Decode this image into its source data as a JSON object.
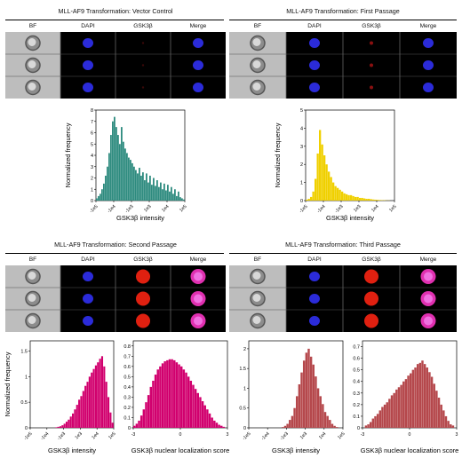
{
  "panels": [
    {
      "title": "MLL-AF9 Transformation: Vector Control",
      "cols": [
        "BF",
        "DAPI",
        "GSK3β",
        "Merge"
      ],
      "gsk": "none",
      "merge": "blue"
    },
    {
      "title": "MLL-AF9 Transformation: First Passage",
      "cols": [
        "BF",
        "DAPI",
        "GSK3β",
        "Merge"
      ],
      "gsk": "faint",
      "merge": "blue"
    },
    {
      "title": "MLL-AF9 Transformation: Second Passage",
      "cols": [
        "BF",
        "DAPI",
        "GSK3β",
        "Merge"
      ],
      "gsk": "red",
      "merge": "magenta"
    },
    {
      "title": "MLL-AF9 Transformation: Third Passage",
      "cols": [
        "BF",
        "DAPI",
        "GSK3β",
        "Merge"
      ],
      "gsk": "red",
      "merge": "magenta"
    }
  ],
  "colors": {
    "teal": "#2e8b7f",
    "yellow": "#f0d000",
    "magenta": "#d1006e",
    "brick": "#b5484c",
    "dapi": "#2b2bd9"
  },
  "chart_data": [
    {
      "type": "bar",
      "color": "teal",
      "ylabel": "Normalized frequency",
      "xlabel": "GSK3β intensity",
      "xticks": [
        "-1e5",
        "-1e4",
        "-1e3",
        "1e3",
        "1e4",
        "1e5"
      ],
      "yticks": [
        "0",
        "1",
        "2",
        "3",
        "4",
        "5",
        "6",
        "7",
        "8"
      ],
      "ylim": [
        0,
        8
      ],
      "values": [
        0.2,
        0.4,
        0.6,
        1.0,
        1.5,
        2.2,
        3.0,
        4.2,
        5.8,
        7.0,
        7.4,
        6.5,
        5.8,
        5.0,
        6.5,
        5.2,
        4.6,
        4.2,
        3.8,
        3.6,
        3.3,
        3.0,
        2.7,
        2.4,
        2.9,
        2.2,
        2.5,
        1.8,
        2.4,
        1.6,
        2.2,
        1.4,
        2.0,
        1.3,
        1.8,
        1.2,
        1.6,
        1.0,
        1.5,
        0.9,
        1.4,
        0.8,
        1.2,
        0.6,
        1.0,
        0.4,
        0.8,
        0.3,
        0.2,
        0.1
      ]
    },
    {
      "type": "bar",
      "color": "yellow",
      "ylabel": "Normalized frequency",
      "xlabel": "GSK3β intensity",
      "xticks": [
        "-1e5",
        "-1e4",
        "-1e3",
        "1e3",
        "1e4",
        "1e5"
      ],
      "yticks": [
        "0",
        "1",
        "2",
        "3",
        "4",
        "5"
      ],
      "ylim": [
        0,
        5
      ],
      "values": [
        0.05,
        0.1,
        0.2,
        0.5,
        1.2,
        2.6,
        3.9,
        3.1,
        2.5,
        2.0,
        1.6,
        1.3,
        1.0,
        0.8,
        0.7,
        0.6,
        0.5,
        0.4,
        0.35,
        0.3,
        0.3,
        0.25,
        0.2,
        0.2,
        0.15,
        0.15,
        0.12,
        0.1,
        0.1,
        0.08,
        0.06,
        0.05,
        0.04,
        0.03,
        0.02,
        0.02,
        0.01,
        0.01,
        0.0,
        0.0
      ]
    },
    {
      "type": "bar",
      "color": "magenta",
      "ylabel": "Normalized frequency",
      "xlabel": "GSK3β intensity",
      "xticks": [
        "-1e5",
        "-1e4",
        "-1e3",
        "1e3",
        "1e4",
        "1e5"
      ],
      "yticks": [
        "0",
        "0.5",
        "1",
        "1.5"
      ],
      "ylim": [
        0,
        1.7
      ],
      "values": [
        0.0,
        0.0,
        0.0,
        0.0,
        0.0,
        0.0,
        0.0,
        0.0,
        0.0,
        0.0,
        0.0,
        0.0,
        0.01,
        0.02,
        0.03,
        0.05,
        0.08,
        0.12,
        0.16,
        0.22,
        0.28,
        0.36,
        0.45,
        0.55,
        0.62,
        0.72,
        0.82,
        0.9,
        1.0,
        1.08,
        1.15,
        1.22,
        1.28,
        1.35,
        1.4,
        1.2,
        0.9,
        0.6,
        0.3,
        0.1
      ]
    },
    {
      "type": "bar",
      "color": "magenta",
      "ylabel": "",
      "xlabel": "GSK3β nuclear localization score",
      "xticks": [
        "-3",
        "0",
        "3"
      ],
      "yticks": [
        "0",
        "0.1",
        "0.2",
        "0.3",
        "0.4",
        "0.5",
        "0.6",
        "0.7",
        "0.8"
      ],
      "ylim": [
        0,
        0.85
      ],
      "values": [
        0.02,
        0.04,
        0.07,
        0.12,
        0.18,
        0.25,
        0.32,
        0.4,
        0.46,
        0.52,
        0.57,
        0.6,
        0.63,
        0.65,
        0.66,
        0.67,
        0.67,
        0.66,
        0.64,
        0.62,
        0.6,
        0.57,
        0.54,
        0.5,
        0.46,
        0.42,
        0.38,
        0.34,
        0.3,
        0.26,
        0.22,
        0.18,
        0.14,
        0.1,
        0.07,
        0.05,
        0.03,
        0.02,
        0.01,
        0.0
      ]
    },
    {
      "type": "bar",
      "color": "brick",
      "ylabel": "",
      "xlabel": "GSK3β intensity",
      "xticks": [
        "-1e5",
        "-1e4",
        "-1e3",
        "1e3",
        "1e4",
        "1e5"
      ],
      "yticks": [
        "0",
        "0.5",
        "1",
        "1.5",
        "2"
      ],
      "ylim": [
        0,
        2.2
      ],
      "values": [
        0.0,
        0.0,
        0.0,
        0.0,
        0.0,
        0.0,
        0.0,
        0.0,
        0.0,
        0.0,
        0.0,
        0.0,
        0.0,
        0.0,
        0.02,
        0.05,
        0.1,
        0.2,
        0.3,
        0.5,
        0.8,
        1.1,
        1.4,
        1.7,
        1.9,
        2.0,
        1.8,
        1.6,
        1.3,
        1.0,
        0.8,
        0.6,
        0.4,
        0.3,
        0.2,
        0.1,
        0.05,
        0.02,
        0.0,
        0.0
      ]
    },
    {
      "type": "bar",
      "color": "brick",
      "ylabel": "",
      "xlabel": "GSK3β nuclear localization score",
      "xticks": [
        "-3",
        "0",
        "3"
      ],
      "yticks": [
        "0",
        "0.1",
        "0.2",
        "0.3",
        "0.4",
        "0.5",
        "0.6",
        "0.7"
      ],
      "ylim": [
        0,
        0.75
      ],
      "values": [
        0.0,
        0.02,
        0.03,
        0.05,
        0.08,
        0.1,
        0.12,
        0.15,
        0.18,
        0.2,
        0.22,
        0.25,
        0.28,
        0.3,
        0.33,
        0.35,
        0.37,
        0.4,
        0.42,
        0.45,
        0.47,
        0.5,
        0.52,
        0.55,
        0.56,
        0.58,
        0.55,
        0.52,
        0.48,
        0.44,
        0.38,
        0.32,
        0.26,
        0.2,
        0.15,
        0.1,
        0.06,
        0.03,
        0.02,
        0.0
      ]
    }
  ]
}
